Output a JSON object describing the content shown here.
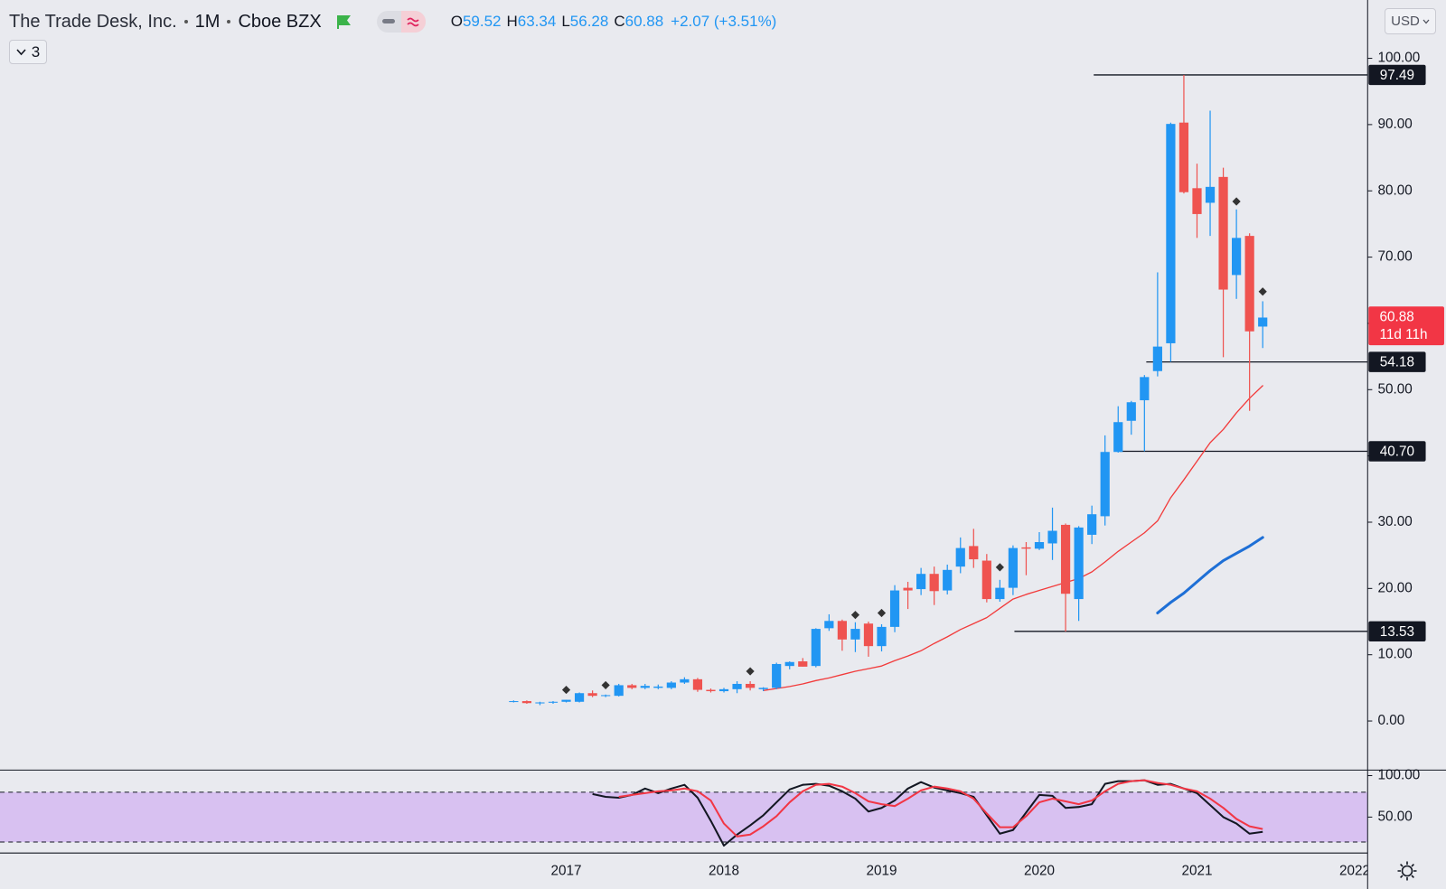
{
  "header": {
    "title": "The Trade Desk, Inc.",
    "interval": "1M",
    "exchange": "Cboe BZX",
    "ohlc_letters": [
      "O",
      "H",
      "L",
      "C"
    ],
    "change": "+2.07 (+3.51%)",
    "currency": "USD",
    "indicator_count": 3
  },
  "chart_data": [
    {
      "type": "candlestick",
      "categories": [
        null,
        null,
        null,
        null,
        "2017",
        null,
        null,
        null,
        null,
        null,
        null,
        null,
        null,
        null,
        null,
        null,
        "2018",
        null,
        null,
        null,
        null,
        null,
        null,
        null,
        null,
        null,
        null,
        null,
        "2019",
        null,
        null,
        null,
        null,
        null,
        null,
        null,
        null,
        null,
        null,
        null,
        "2020",
        null,
        null,
        null,
        null,
        null,
        null,
        null,
        null,
        null,
        null,
        null,
        "2021",
        null,
        null,
        null,
        null,
        null,
        null,
        null,
        null,
        null,
        null,
        null,
        "2022"
      ],
      "open": [
        2.9,
        3.0,
        2.7,
        2.8,
        2.9,
        2.9,
        4.2,
        3.8,
        3.8,
        5.4,
        5.0,
        5.0,
        5.0,
        5.8,
        6.3,
        4.7,
        4.5,
        4.8,
        5.6,
        4.8,
        5.0,
        8.3,
        9.0,
        8.3,
        14.0,
        15.1,
        12.3,
        14.7,
        11.3,
        14.2,
        20.1,
        19.9,
        22.2,
        19.7,
        23.3,
        26.4,
        24.2,
        18.4,
        20.1,
        26.2,
        26.0,
        26.8,
        29.6,
        18.4,
        28.1,
        30.9,
        40.6,
        45.3,
        48.4,
        52.8,
        57.0,
        90.3,
        80.4,
        78.2,
        82.1,
        67.3,
        73.2,
        59.52,
        null,
        null,
        null,
        null,
        null,
        null,
        null
      ],
      "high": [
        3.1,
        3.1,
        2.9,
        3.0,
        3.2,
        4.3,
        4.6,
        4.0,
        5.6,
        5.6,
        5.6,
        5.5,
        6.0,
        6.6,
        6.5,
        4.9,
        5.0,
        6.0,
        6.0,
        5.1,
        8.8,
        9.0,
        9.5,
        14.0,
        16.1,
        15.3,
        14.9,
        15.0,
        14.6,
        20.5,
        21.0,
        23.1,
        23.3,
        23.6,
        27.7,
        29.0,
        25.2,
        21.3,
        26.5,
        27.0,
        28.5,
        32.2,
        29.8,
        29.4,
        32.5,
        43.1,
        47.5,
        48.3,
        52.2,
        67.7,
        90.3,
        97.49,
        84.1,
        92.1,
        83.5,
        77.2,
        73.6,
        63.34,
        null,
        null,
        null,
        null,
        null,
        null,
        null
      ],
      "low": [
        2.8,
        2.6,
        2.4,
        2.6,
        2.8,
        2.8,
        3.6,
        3.6,
        3.7,
        4.8,
        4.8,
        4.8,
        4.8,
        5.6,
        4.4,
        4.3,
        4.3,
        4.2,
        4.6,
        4.5,
        4.8,
        7.8,
        8.2,
        8.1,
        13.6,
        10.6,
        10.4,
        9.7,
        10.5,
        13.4,
        16.9,
        19.0,
        17.5,
        19.1,
        22.3,
        23.1,
        17.9,
        18.0,
        19.0,
        22.0,
        25.8,
        24.3,
        13.5,
        15.1,
        26.7,
        29.5,
        40.5,
        43.2,
        40.7,
        52.0,
        54.2,
        79.6,
        72.9,
        73.2,
        54.9,
        63.7,
        46.8,
        56.28,
        null,
        null,
        null,
        null,
        null,
        null,
        null
      ],
      "close": [
        3.0,
        2.7,
        2.8,
        2.9,
        3.2,
        4.2,
        3.8,
        3.9,
        5.4,
        5.0,
        5.3,
        5.2,
        5.8,
        6.3,
        4.7,
        4.5,
        4.8,
        5.6,
        5.0,
        5.0,
        8.6,
        8.9,
        8.2,
        13.9,
        15.1,
        12.3,
        13.9,
        11.3,
        14.2,
        19.7,
        19.7,
        22.2,
        19.6,
        22.8,
        26.1,
        24.4,
        18.4,
        20.1,
        26.1,
        26.0,
        27.0,
        28.7,
        19.2,
        29.2,
        31.2,
        40.6,
        45.1,
        48.1,
        51.9,
        56.5,
        90.1,
        79.8,
        76.5,
        80.6,
        65.1,
        72.9,
        58.8,
        60.88,
        null,
        null,
        null,
        null,
        null,
        null,
        null
      ],
      "up_color": "#2196f3",
      "down_color": "#ef5350",
      "overlays": [
        {
          "color": "#f23b3b",
          "width": 1.3,
          "values": [
            null,
            null,
            null,
            null,
            null,
            null,
            null,
            null,
            null,
            null,
            null,
            null,
            null,
            null,
            null,
            null,
            null,
            null,
            null,
            4.6,
            4.9,
            5.2,
            5.6,
            6.1,
            6.5,
            7.0,
            7.5,
            7.9,
            8.3,
            9.1,
            9.8,
            10.6,
            11.7,
            12.7,
            13.8,
            14.7,
            15.6,
            17.0,
            18.4,
            19.1,
            19.7,
            20.3,
            20.9,
            21.5,
            22.5,
            24.0,
            25.6,
            27.0,
            28.4,
            30.2,
            33.7,
            36.4,
            39.2,
            42.0,
            44.0,
            46.5,
            48.7,
            50.6,
            null,
            null,
            null,
            null,
            null,
            null,
            null
          ]
        },
        {
          "color": "#1e6fd6",
          "width": 3,
          "values": [
            null,
            null,
            null,
            null,
            null,
            null,
            null,
            null,
            null,
            null,
            null,
            null,
            null,
            null,
            null,
            null,
            null,
            null,
            null,
            null,
            null,
            null,
            null,
            null,
            null,
            null,
            null,
            null,
            null,
            null,
            null,
            null,
            null,
            null,
            null,
            null,
            null,
            null,
            null,
            null,
            null,
            null,
            null,
            null,
            null,
            null,
            null,
            null,
            null,
            16.3,
            17.9,
            19.3,
            21.0,
            22.7,
            24.2,
            25.3,
            26.4,
            27.7,
            null,
            null,
            null,
            null,
            null,
            null,
            null
          ]
        }
      ],
      "markers": [
        null,
        null,
        null,
        null,
        4.7,
        null,
        null,
        5.4,
        null,
        null,
        null,
        null,
        null,
        null,
        null,
        null,
        null,
        null,
        7.5,
        null,
        null,
        null,
        null,
        null,
        null,
        null,
        16.0,
        null,
        16.3,
        null,
        null,
        null,
        null,
        null,
        null,
        null,
        null,
        23.2,
        null,
        null,
        null,
        null,
        null,
        null,
        null,
        null,
        null,
        null,
        null,
        null,
        null,
        null,
        null,
        null,
        null,
        78.4,
        null,
        64.8,
        null,
        null,
        null,
        null,
        null,
        null,
        null
      ],
      "marker_color": "#333333",
      "levels": [
        97.49,
        54.18,
        {
          "value": 40.7,
          "label": "40.70"
        },
        13.53
      ],
      "last_price_color": "#f23645",
      "countdown": "11d 11h",
      "ylim": [
        -7.4,
        108.8
      ],
      "yticks": [
        {
          "value": 0,
          "label": "0.00"
        },
        {
          "value": 10,
          "label": "10.00"
        },
        {
          "value": 20,
          "label": "20.00"
        },
        {
          "value": 30,
          "label": "30.00"
        },
        {
          "value": 40,
          "label": "40.00"
        },
        {
          "value": 50,
          "label": "50.00"
        },
        {
          "value": 60,
          "label": "60.00"
        },
        {
          "value": 70,
          "label": "70.00"
        },
        {
          "value": 80,
          "label": "80.00"
        },
        {
          "value": 90,
          "label": "90.00"
        },
        {
          "value": 100,
          "label": "100.00"
        }
      ]
    },
    {
      "type": "line",
      "series": [
        {
          "color": "#131722",
          "values": [
            null,
            null,
            null,
            null,
            null,
            null,
            77.8,
            74.4,
            73.3,
            76.7,
            84.4,
            78.9,
            84.4,
            88.9,
            73.3,
            45.6,
            15.6,
            28.9,
            40,
            52.2,
            67.8,
            83.3,
            88.9,
            90,
            87.8,
            81.1,
            72.2,
            56.7,
            61.1,
            70,
            84.4,
            92.2,
            85.6,
            82.2,
            78.9,
            74.4,
            52.2,
            30,
            34.4,
            55.6,
            76.7,
            75.6,
            61.1,
            62.2,
            65.6,
            90,
            93.3,
            93.3,
            94.4,
            88.9,
            90,
            84.4,
            78.9,
            64.4,
            50,
            42.2,
            30,
            32.2,
            null,
            null,
            null,
            null,
            null,
            null,
            null
          ]
        },
        {
          "color": "#f23645",
          "values": [
            null,
            null,
            null,
            null,
            null,
            null,
            null,
            null,
            74.4,
            76.7,
            78.9,
            81.1,
            82.2,
            84.4,
            81.1,
            70,
            42.2,
            26.7,
            28.9,
            38.9,
            51.1,
            67.8,
            81.1,
            88.9,
            90,
            86.7,
            78.9,
            68.9,
            65.6,
            63.3,
            72.2,
            82.2,
            86.7,
            84.4,
            81.1,
            72.2,
            54.4,
            37.8,
            37.8,
            51.1,
            67.8,
            72.2,
            68.9,
            65.6,
            70,
            81.1,
            90,
            93.3,
            94.4,
            91.1,
            88.9,
            84.4,
            81.1,
            72.2,
            61.1,
            47.8,
            38.9,
            35.6,
            null,
            null,
            null,
            null,
            null,
            null,
            null
          ]
        }
      ],
      "bands": [
        20,
        80
      ],
      "band_color": "#d8c1f1",
      "ylim": [
        6.7,
        106.7
      ],
      "yticks": [
        {
          "value": 50,
          "label": "50.00"
        },
        {
          "value": 100,
          "label": "100.00"
        }
      ]
    }
  ]
}
